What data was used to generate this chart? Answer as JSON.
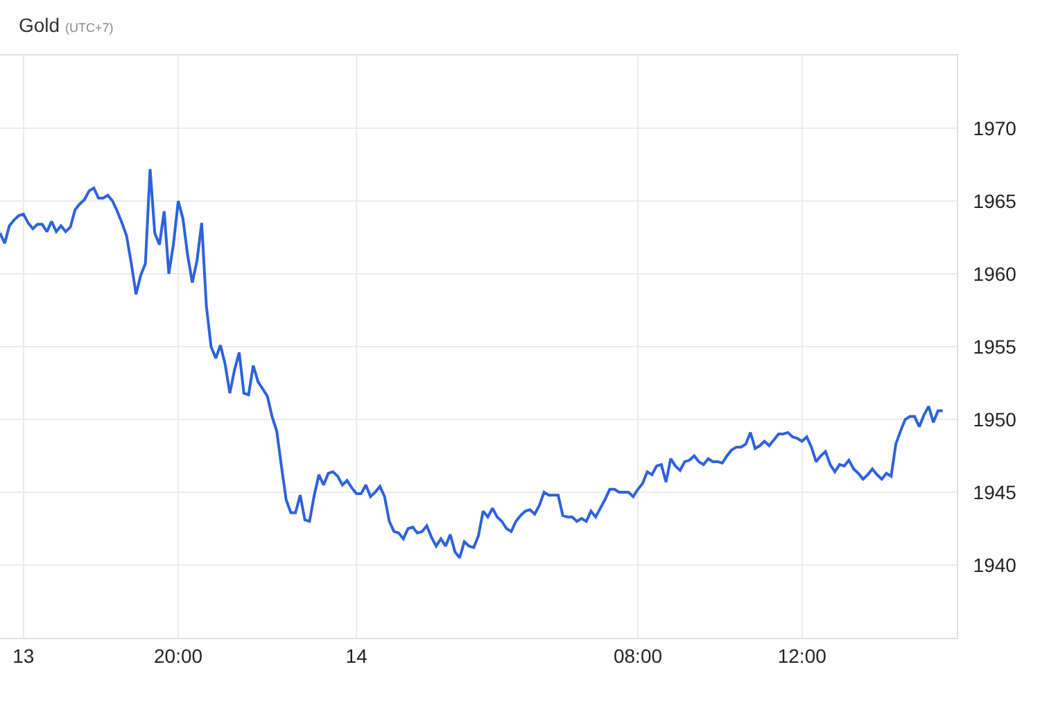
{
  "chart_data": {
    "type": "line",
    "title": "Gold",
    "subtitle": "(UTC+7)",
    "categories": [
      null,
      null,
      null,
      null,
      null,
      "13",
      null,
      null,
      null,
      null,
      null,
      null,
      null,
      null,
      null,
      null,
      null,
      null,
      null,
      null,
      null,
      null,
      null,
      null,
      null,
      null,
      null,
      null,
      null,
      null,
      null,
      null,
      null,
      null,
      null,
      null,
      null,
      null,
      "20:00",
      null,
      null,
      null,
      null,
      null,
      null,
      null,
      null,
      null,
      null,
      null,
      null,
      null,
      null,
      null,
      null,
      null,
      null,
      null,
      null,
      null,
      null,
      null,
      null,
      null,
      null,
      null,
      null,
      null,
      null,
      null,
      null,
      null,
      null,
      null,
      null,
      null,
      "14",
      null,
      null,
      null,
      null,
      null,
      null,
      null,
      null,
      null,
      null,
      null,
      null,
      null,
      null,
      null,
      null,
      null,
      null,
      null,
      null,
      null,
      null,
      null,
      null,
      null,
      null,
      null,
      null,
      null,
      null,
      null,
      null,
      null,
      null,
      null,
      null,
      null,
      null,
      null,
      null,
      null,
      null,
      null,
      null,
      null,
      null,
      null,
      null,
      null,
      null,
      null,
      null,
      null,
      null,
      null,
      null,
      null,
      null,
      null,
      "08:00",
      null,
      null,
      null,
      null,
      null,
      null,
      null,
      null,
      null,
      null,
      null,
      null,
      null,
      null,
      null,
      null,
      null,
      null,
      null,
      null,
      null,
      null,
      null,
      null,
      null,
      null,
      null,
      null,
      null,
      null,
      null,
      null,
      null,
      null,
      "12:00",
      null,
      null,
      null,
      null,
      null,
      null,
      null,
      null,
      null,
      null,
      null,
      null,
      null,
      null,
      null,
      null,
      null,
      null,
      null,
      null,
      null,
      null,
      null,
      null,
      null,
      null,
      null,
      null,
      null,
      null
    ],
    "series": [
      {
        "color": "#2e62dc",
        "values": [
          1962.8,
          1962.1,
          1963.3,
          1963.7,
          1964.0,
          1964.1,
          1963.5,
          1963.1,
          1963.4,
          1963.4,
          1962.9,
          1963.6,
          1962.9,
          1963.3,
          1962.9,
          1963.2,
          1964.4,
          1964.8,
          1965.1,
          1965.7,
          1965.9,
          1965.2,
          1965.2,
          1965.4,
          1965.0,
          1964.3,
          1963.5,
          1962.6,
          1960.7,
          1958.6,
          1959.9,
          1960.7,
          1967.2,
          1962.8,
          1962.0,
          1964.3,
          1960.0,
          1962.1,
          1965.0,
          1963.8,
          1961.3,
          1959.4,
          1960.9,
          1963.5,
          1957.8,
          1955.0,
          1954.2,
          1955.1,
          1953.8,
          1951.8,
          1953.4,
          1954.6,
          1951.8,
          1951.7,
          1953.7,
          1952.6,
          1952.1,
          1951.6,
          1950.2,
          1949.2,
          1946.8,
          1944.5,
          1943.6,
          1943.6,
          1944.8,
          1943.1,
          1943.0,
          1944.8,
          1946.2,
          1945.5,
          1946.3,
          1946.4,
          1946.1,
          1945.5,
          1945.8,
          1945.3,
          1944.9,
          1944.9,
          1945.5,
          1944.7,
          1945.0,
          1945.4,
          1944.7,
          1943.0,
          1942.3,
          1942.2,
          1941.8,
          1942.5,
          1942.6,
          1942.2,
          1942.3,
          1942.7,
          1941.9,
          1941.3,
          1941.8,
          1941.3,
          1942.1,
          1940.9,
          1940.5,
          1941.6,
          1941.3,
          1941.2,
          1942.0,
          1943.7,
          1943.3,
          1943.9,
          1943.3,
          1943.0,
          1942.5,
          1942.3,
          1943.0,
          1943.4,
          1943.7,
          1943.8,
          1943.5,
          1944.1,
          1945.0,
          1944.8,
          1944.8,
          1944.8,
          1943.4,
          1943.3,
          1943.3,
          1943.0,
          1943.2,
          1943.0,
          1943.7,
          1943.3,
          1943.9,
          1944.5,
          1945.2,
          1945.2,
          1945.0,
          1945.0,
          1945.0,
          1944.7,
          1945.2,
          1945.6,
          1946.4,
          1946.2,
          1946.8,
          1946.9,
          1945.7,
          1947.3,
          1946.8,
          1946.5,
          1947.1,
          1947.2,
          1947.5,
          1947.1,
          1946.9,
          1947.3,
          1947.1,
          1947.1,
          1947.0,
          1947.5,
          1947.9,
          1948.1,
          1948.1,
          1948.3,
          1949.1,
          1948.0,
          1948.2,
          1948.5,
          1948.2,
          1948.6,
          1949.0,
          1949.0,
          1949.1,
          1948.8,
          1948.7,
          1948.5,
          1948.8,
          1948.1,
          1947.1,
          1947.5,
          1947.8,
          1946.9,
          1946.4,
          1946.9,
          1946.8,
          1947.2,
          1946.6,
          1946.3,
          1945.9,
          1946.2,
          1946.6,
          1946.2,
          1945.9,
          1946.3,
          1946.1,
          1948.3,
          1949.2,
          1950.0,
          1950.2,
          1950.2,
          1949.5,
          1950.3,
          1950.9,
          1949.8,
          1950.6,
          1950.6
        ]
      }
    ],
    "ylim": [
      1935,
      1975
    ],
    "yticks": [
      1940,
      1945,
      1950,
      1955,
      1960,
      1965,
      1970
    ],
    "grid": true,
    "line_style": "solid"
  }
}
